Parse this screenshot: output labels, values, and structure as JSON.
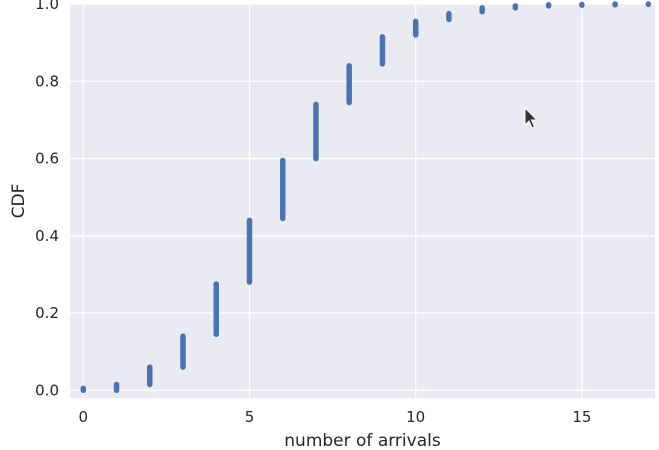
{
  "chart_data": {
    "type": "scatter",
    "xlabel": "number of arrivals",
    "ylabel": "CDF",
    "xlim": [
      -0.4,
      17.2
    ],
    "ylim": [
      -0.02,
      1.0
    ],
    "x_ticks": [
      0,
      5,
      10,
      15
    ],
    "y_ticks": [
      0.0,
      0.2,
      0.4,
      0.6,
      0.8,
      1.0
    ],
    "x_tick_labels": [
      "0",
      "5",
      "10",
      "15"
    ],
    "y_tick_labels": [
      "0.0",
      "0.2",
      "0.4",
      "0.6",
      "0.8",
      "1.0"
    ],
    "grid": true,
    "marker_color": "#4c72b0",
    "background_color": "#eaeaf2",
    "series": [
      {
        "segments": [
          {
            "x": 0,
            "y_low": 0.0,
            "y_high": 0.005
          },
          {
            "x": 1,
            "y_low": 0.0,
            "y_high": 0.015
          },
          {
            "x": 2,
            "y_low": 0.015,
            "y_high": 0.06
          },
          {
            "x": 3,
            "y_low": 0.06,
            "y_high": 0.14
          },
          {
            "x": 4,
            "y_low": 0.145,
            "y_high": 0.275
          },
          {
            "x": 5,
            "y_low": 0.28,
            "y_high": 0.44
          },
          {
            "x": 6,
            "y_low": 0.445,
            "y_high": 0.595
          },
          {
            "x": 7,
            "y_low": 0.6,
            "y_high": 0.74
          },
          {
            "x": 8,
            "y_low": 0.745,
            "y_high": 0.84
          },
          {
            "x": 9,
            "y_low": 0.845,
            "y_high": 0.915
          },
          {
            "x": 10,
            "y_low": 0.92,
            "y_high": 0.955
          },
          {
            "x": 11,
            "y_low": 0.96,
            "y_high": 0.975
          },
          {
            "x": 12,
            "y_low": 0.98,
            "y_high": 0.99
          },
          {
            "x": 13,
            "y_low": 0.99,
            "y_high": 0.995
          },
          {
            "x": 14,
            "y_low": 0.995,
            "y_high": 0.998
          },
          {
            "x": 15,
            "y_low": 0.997,
            "y_high": 0.999
          },
          {
            "x": 16,
            "y_low": 0.998,
            "y_high": 1.0
          },
          {
            "x": 17,
            "y_low": 0.999,
            "y_high": 1.0
          }
        ]
      }
    ]
  },
  "cursor": {
    "icon": "mouse-pointer-icon",
    "x": 16.6,
    "y": 0.73
  }
}
